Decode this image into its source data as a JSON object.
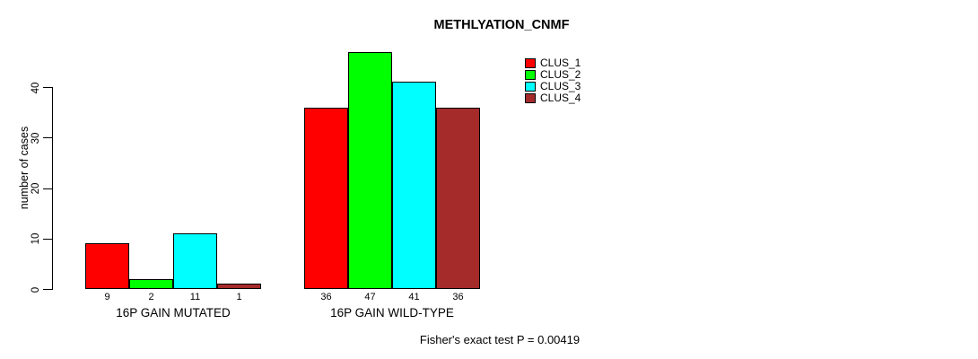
{
  "chart_data": {
    "type": "bar",
    "title": "METHLYATION_CNMF",
    "ylabel": "number of cases",
    "ylim": [
      0,
      47
    ],
    "yticks": [
      0,
      10,
      20,
      30,
      40
    ],
    "grid": false,
    "legend_position": "top-right",
    "series": [
      "CLUS_1",
      "CLUS_2",
      "CLUS_3",
      "CLUS_4"
    ],
    "colors": [
      "#FF0000",
      "#00FF00",
      "#00FFFF",
      "#A52A2A"
    ],
    "groups": [
      {
        "label": "16P GAIN MUTATED",
        "values": [
          9,
          2,
          11,
          1
        ]
      },
      {
        "label": "16P GAIN WILD-TYPE",
        "values": [
          36,
          47,
          41,
          36
        ]
      }
    ],
    "annotation": "Fisher's exact test P = 0.00419"
  }
}
